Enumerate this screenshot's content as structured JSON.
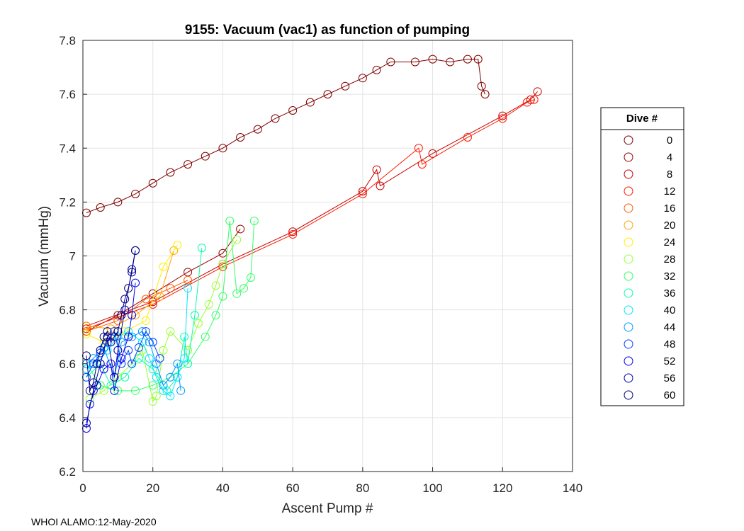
{
  "chart_data": {
    "type": "line",
    "title": "9155: Vacuum (vac1) as function of pumping",
    "xlabel": "Ascent Pump #",
    "ylabel": "Vacuum (mmHg)",
    "xlim": [
      0,
      140
    ],
    "ylim": [
      6.2,
      7.8
    ],
    "xticks": [
      "0",
      "20",
      "40",
      "60",
      "80",
      "100",
      "120",
      "140"
    ],
    "yticks": [
      "6.2",
      "6.4",
      "6.6",
      "6.8",
      "7",
      "7.2",
      "7.4",
      "7.6",
      "7.8"
    ],
    "grid": true,
    "legend_title": "Dive #",
    "legend_location": "outside-right",
    "footer": "WHOI ALAMO:12-May-2020",
    "series": [
      {
        "name": "0",
        "color": "#800000",
        "points": [
          [
            1,
            7.16
          ],
          [
            5,
            7.18
          ],
          [
            10,
            7.2
          ],
          [
            15,
            7.23
          ],
          [
            20,
            7.27
          ],
          [
            25,
            7.31
          ],
          [
            30,
            7.34
          ],
          [
            35,
            7.37
          ],
          [
            40,
            7.4
          ],
          [
            45,
            7.44
          ],
          [
            50,
            7.47
          ],
          [
            55,
            7.51
          ],
          [
            60,
            7.54
          ],
          [
            65,
            7.57
          ],
          [
            70,
            7.6
          ],
          [
            75,
            7.63
          ],
          [
            80,
            7.66
          ],
          [
            84,
            7.69
          ],
          [
            88,
            7.72
          ],
          [
            95,
            7.72
          ],
          [
            100,
            7.73
          ],
          [
            105,
            7.72
          ],
          [
            110,
            7.73
          ],
          [
            113,
            7.73
          ],
          [
            114,
            7.63
          ],
          [
            115,
            7.6
          ]
        ]
      },
      {
        "name": "4",
        "color": "#9a0000",
        "points": [
          [
            1,
            6.72
          ],
          [
            10,
            6.78
          ],
          [
            20,
            6.86
          ],
          [
            30,
            6.94
          ],
          [
            40,
            7.01
          ],
          [
            45,
            7.1
          ]
        ]
      },
      {
        "name": "8",
        "color": "#c80000",
        "points": [
          [
            1,
            6.74
          ],
          [
            20,
            6.83
          ],
          [
            40,
            6.97
          ],
          [
            60,
            7.09
          ],
          [
            80,
            7.24
          ],
          [
            84,
            7.32
          ],
          [
            85,
            7.26
          ],
          [
            100,
            7.38
          ],
          [
            120,
            7.52
          ],
          [
            128,
            7.58
          ],
          [
            130,
            7.61
          ]
        ]
      },
      {
        "name": "12",
        "color": "#ff1800",
        "points": [
          [
            1,
            6.73
          ],
          [
            20,
            6.82
          ],
          [
            40,
            6.96
          ],
          [
            60,
            7.08
          ],
          [
            80,
            7.23
          ],
          [
            96,
            7.4
          ],
          [
            97,
            7.34
          ],
          [
            110,
            7.44
          ],
          [
            120,
            7.51
          ],
          [
            127,
            7.57
          ],
          [
            129,
            7.58
          ]
        ]
      },
      {
        "name": "16",
        "color": "#ff5a00",
        "points": [
          [
            1,
            6.72
          ],
          [
            10,
            6.76
          ],
          [
            18,
            6.84
          ],
          [
            25,
            6.88
          ],
          [
            30,
            6.91
          ]
        ]
      },
      {
        "name": "20",
        "color": "#ffa500",
        "points": [
          [
            1,
            6.74
          ],
          [
            8,
            6.73
          ],
          [
            15,
            6.78
          ],
          [
            22,
            6.85
          ],
          [
            26,
            7.02
          ]
        ]
      },
      {
        "name": "24",
        "color": "#ffee00",
        "points": [
          [
            1,
            6.71
          ],
          [
            6,
            6.68
          ],
          [
            12,
            6.72
          ],
          [
            18,
            6.76
          ],
          [
            23,
            6.96
          ],
          [
            27,
            7.04
          ]
        ]
      },
      {
        "name": "28",
        "color": "#99ff33",
        "points": [
          [
            2,
            6.47
          ],
          [
            6,
            6.5
          ],
          [
            10,
            6.55
          ],
          [
            14,
            6.6
          ],
          [
            17,
            6.65
          ],
          [
            20,
            6.46
          ],
          [
            21,
            6.48
          ],
          [
            23,
            6.65
          ],
          [
            25,
            6.72
          ],
          [
            30,
            6.65
          ],
          [
            33,
            6.75
          ],
          [
            36,
            6.82
          ],
          [
            38,
            6.89
          ],
          [
            40,
            6.97
          ],
          [
            44,
            7.06
          ]
        ]
      },
      {
        "name": "32",
        "color": "#33ff66",
        "points": [
          [
            1,
            6.6
          ],
          [
            5,
            6.52
          ],
          [
            10,
            6.5
          ],
          [
            15,
            6.5
          ],
          [
            20,
            6.52
          ],
          [
            25,
            6.55
          ],
          [
            30,
            6.6
          ],
          [
            35,
            6.7
          ],
          [
            38,
            6.78
          ],
          [
            40,
            6.85
          ],
          [
            42,
            7.13
          ],
          [
            44,
            6.86
          ],
          [
            46,
            6.88
          ],
          [
            48,
            6.92
          ],
          [
            49,
            7.13
          ]
        ]
      },
      {
        "name": "36",
        "color": "#00ffb0",
        "points": [
          [
            1,
            6.55
          ],
          [
            5,
            6.6
          ],
          [
            8,
            6.52
          ],
          [
            12,
            6.55
          ],
          [
            16,
            6.62
          ],
          [
            20,
            6.58
          ],
          [
            24,
            6.5
          ],
          [
            27,
            6.55
          ],
          [
            29,
            6.7
          ],
          [
            30,
            6.6
          ],
          [
            32,
            6.78
          ],
          [
            34,
            7.03
          ]
        ]
      },
      {
        "name": "40",
        "color": "#00e5ff",
        "points": [
          [
            1,
            6.58
          ],
          [
            4,
            6.6
          ],
          [
            7,
            6.65
          ],
          [
            10,
            6.7
          ],
          [
            13,
            6.72
          ],
          [
            17,
            6.68
          ],
          [
            19,
            6.62
          ],
          [
            21,
            6.55
          ],
          [
            23,
            6.5
          ],
          [
            25,
            6.48
          ],
          [
            27,
            6.55
          ],
          [
            29,
            6.62
          ],
          [
            30,
            6.88
          ]
        ]
      },
      {
        "name": "44",
        "color": "#0099ff",
        "points": [
          [
            1,
            6.6
          ],
          [
            3,
            6.62
          ],
          [
            6,
            6.66
          ],
          [
            9,
            6.55
          ],
          [
            11,
            6.68
          ],
          [
            14,
            6.7
          ],
          [
            17,
            6.72
          ],
          [
            19,
            6.68
          ],
          [
            21,
            6.6
          ],
          [
            23,
            6.52
          ],
          [
            25,
            6.55
          ],
          [
            27,
            6.6
          ],
          [
            28,
            6.5
          ]
        ]
      },
      {
        "name": "48",
        "color": "#0040ff",
        "points": [
          [
            1,
            6.55
          ],
          [
            3,
            6.6
          ],
          [
            5,
            6.64
          ],
          [
            7,
            6.68
          ],
          [
            9,
            6.72
          ],
          [
            11,
            6.6
          ],
          [
            13,
            6.65
          ],
          [
            14,
            6.6
          ],
          [
            16,
            6.66
          ],
          [
            18,
            6.72
          ],
          [
            20,
            6.68
          ],
          [
            22,
            6.62
          ]
        ]
      },
      {
        "name": "52",
        "color": "#0000ee",
        "points": [
          [
            1,
            6.36
          ],
          [
            2,
            6.45
          ],
          [
            4,
            6.52
          ],
          [
            6,
            6.58
          ],
          [
            8,
            6.6
          ],
          [
            9,
            6.5
          ],
          [
            11,
            6.62
          ],
          [
            13,
            6.7
          ],
          [
            14,
            6.78
          ],
          [
            15,
            6.9
          ]
        ]
      },
      {
        "name": "56",
        "color": "#0000b0",
        "points": [
          [
            1,
            6.38
          ],
          [
            3,
            6.5
          ],
          [
            5,
            6.6
          ],
          [
            7,
            6.7
          ],
          [
            9,
            6.55
          ],
          [
            10,
            6.65
          ],
          [
            12,
            6.8
          ],
          [
            14,
            6.95
          ],
          [
            15,
            7.02
          ]
        ]
      },
      {
        "name": "60",
        "color": "#000080",
        "points": [
          [
            1,
            6.63
          ],
          [
            2,
            6.5
          ],
          [
            3,
            6.53
          ],
          [
            4,
            6.6
          ],
          [
            5,
            6.65
          ],
          [
            6,
            6.7
          ],
          [
            7,
            6.72
          ],
          [
            8,
            6.68
          ],
          [
            9,
            6.7
          ],
          [
            10,
            6.72
          ],
          [
            11,
            6.78
          ],
          [
            12,
            6.84
          ],
          [
            13,
            6.88
          ],
          [
            14,
            6.94
          ],
          [
            15,
            7.02
          ]
        ]
      }
    ]
  }
}
